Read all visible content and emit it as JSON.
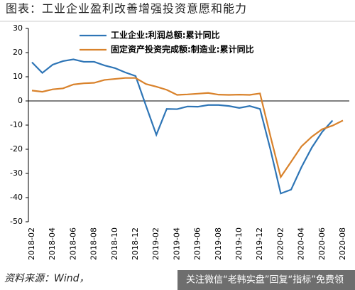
{
  "chart_data": {
    "type": "line",
    "title": "图表：工业企业盈利改善增强投资意愿和能力",
    "source": "资料来源：Wind，",
    "watermark": "关注微信“老韩实盘”回复“指标”免费领",
    "categories": [
      "2018-02",
      null,
      "2018-04",
      null,
      "2018-06",
      null,
      "2018-08",
      null,
      "2018-10",
      null,
      "2018-12",
      null,
      "2019-02",
      null,
      "2019-04",
      null,
      "2019-06",
      null,
      "2019-08",
      null,
      "2019-10",
      null,
      "2019-12",
      null,
      "2020-02",
      null,
      "2020-04",
      null,
      "2020-06",
      null,
      "2020-08"
    ],
    "series": [
      {
        "name": "工业企业:利润总额:累计同比",
        "color": "#2e75b6",
        "values": [
          16,
          11.6,
          15,
          16.5,
          17.2,
          16.2,
          16.2,
          14.7,
          13.6,
          11.8,
          10.3,
          -2,
          -14,
          -3.3,
          -3.4,
          -2.3,
          -2.4,
          -1.7,
          -1.7,
          -2.1,
          -2.9,
          -2.1,
          -3.3,
          -20,
          -38.3,
          -36.7,
          -27.4,
          -19.3,
          -12.8,
          -8.1,
          null
        ]
      },
      {
        "name": "固定资产投资完成额:制造业:累计同比",
        "color": "#d9822b",
        "values": [
          4.3,
          3.8,
          4.8,
          5.2,
          6.8,
          7.3,
          7.5,
          8.7,
          9.1,
          9.5,
          9.5,
          7,
          5.9,
          4.6,
          2.5,
          2.7,
          3,
          3.3,
          2.6,
          2.5,
          2.6,
          2.5,
          3.1,
          -14.5,
          -31.5,
          -25.2,
          -18.8,
          -14.8,
          -11.7,
          -10.2,
          -8.1
        ]
      }
    ],
    "ylim": [
      -50,
      30
    ],
    "yticks": [
      -50,
      -40,
      -30,
      -20,
      -10,
      0,
      10,
      20,
      30
    ],
    "grid": false
  }
}
